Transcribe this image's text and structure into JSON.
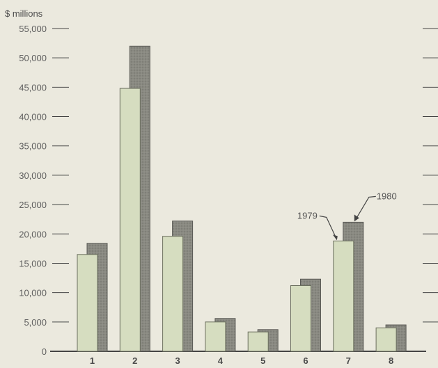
{
  "chart_data": {
    "type": "bar",
    "ylabel": "$ millions",
    "ylim": [
      0,
      55000
    ],
    "yticks": [
      0,
      5000,
      10000,
      15000,
      20000,
      25000,
      30000,
      35000,
      40000,
      45000,
      50000,
      55000
    ],
    "ytick_labels": [
      "0",
      "5,000",
      "10,000",
      "15,000",
      "20,000",
      "25,000",
      "30,000",
      "35,000",
      "40,000",
      "45,000",
      "50,000",
      "55,000"
    ],
    "categories": [
      "1",
      "2",
      "3",
      "4",
      "5",
      "6",
      "7",
      "8"
    ],
    "series": [
      {
        "name": "1979",
        "values": [
          16500,
          44800,
          19600,
          5000,
          3300,
          11200,
          18800,
          4000
        ]
      },
      {
        "name": "1980",
        "values": [
          18400,
          52000,
          22200,
          5600,
          3700,
          12300,
          22000,
          4500
        ]
      }
    ],
    "annotations": [
      "1979",
      "1980"
    ],
    "colors": {
      "1979": "#d6ddc0",
      "1980": "#8a8a82",
      "axis": "#444444",
      "background": "#ebe9de"
    },
    "grid": false,
    "legend": "none"
  }
}
